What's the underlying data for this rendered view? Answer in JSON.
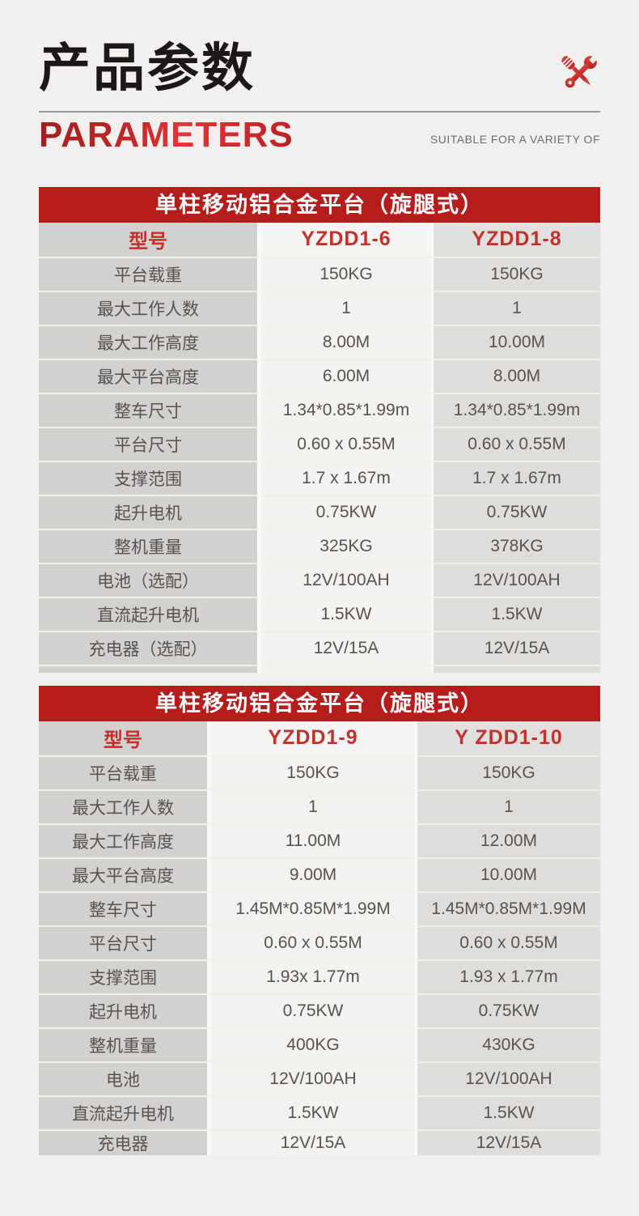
{
  "header": {
    "title_cn": "产品参数",
    "title_en": "PARAMETERS",
    "tagline": "SUITABLE FOR A VARIETY OF"
  },
  "icons": {
    "header_icon": "wrench-screwdriver-icon"
  },
  "colors": {
    "page_bg": "#f1f0ee",
    "banner_red": "#b51d1d",
    "accent_red": "#c4302c",
    "label_col_bg": "#d2d1d0",
    "value_col1_bg": "#f3f2f0",
    "value_col2_bg": "#dedddb",
    "cell_text": "#565351"
  },
  "tables": [
    {
      "banner": "单柱移动铝合金平台（旋腿式）",
      "model_label": "型号",
      "models": [
        "YZDD1-6",
        "YZDD1-8"
      ],
      "rows": [
        {
          "label": "平台载重",
          "v1": "150KG",
          "v2": "150KG"
        },
        {
          "label": "最大工作人数",
          "v1": "1",
          "v2": "1"
        },
        {
          "label": "最大工作高度",
          "v1": "8.00M",
          "v2": "10.00M"
        },
        {
          "label": "最大平台高度",
          "v1": "6.00M",
          "v2": "8.00M"
        },
        {
          "label": "整车尺寸",
          "v1": "1.34*0.85*1.99m",
          "v2": "1.34*0.85*1.99m"
        },
        {
          "label": "平台尺寸",
          "v1": "0.60 x 0.55M",
          "v2": "0.60 x 0.55M"
        },
        {
          "label": "支撑范围",
          "v1": "1.7 x 1.67m",
          "v2": "1.7 x 1.67m"
        },
        {
          "label": "起升电机",
          "v1": "0.75KW",
          "v2": "0.75KW"
        },
        {
          "label": "整机重量",
          "v1": "325KG",
          "v2": "378KG"
        },
        {
          "label": "电池（选配）",
          "v1": "12V/100AH",
          "v2": "12V/100AH"
        },
        {
          "label": "直流起升电机",
          "v1": "1.5KW",
          "v2": "1.5KW"
        },
        {
          "label": "充电器（选配）",
          "v1": "12V/15A",
          "v2": "12V/15A"
        }
      ]
    },
    {
      "banner": "单柱移动铝合金平台（旋腿式）",
      "model_label": "型号",
      "models": [
        "YZDD1-9",
        "Y ZDD1-10"
      ],
      "rows": [
        {
          "label": "平台载重",
          "v1": "150KG",
          "v2": "150KG"
        },
        {
          "label": "最大工作人数",
          "v1": "1",
          "v2": "1"
        },
        {
          "label": "最大工作高度",
          "v1": "11.00M",
          "v2": "12.00M"
        },
        {
          "label": "最大平台高度",
          "v1": "9.00M",
          "v2": "10.00M"
        },
        {
          "label": "整车尺寸",
          "v1": "1.45M*0.85M*1.99M",
          "v2": "1.45M*0.85M*1.99M"
        },
        {
          "label": "平台尺寸",
          "v1": "0.60 x 0.55M",
          "v2": "0.60 x 0.55M"
        },
        {
          "label": "支撑范围",
          "v1": "1.93x 1.77m",
          "v2": "1.93 x 1.77m"
        },
        {
          "label": "起升电机",
          "v1": "0.75KW",
          "v2": "0.75KW"
        },
        {
          "label": "整机重量",
          "v1": "400KG",
          "v2": "430KG"
        },
        {
          "label": "电池",
          "v1": "12V/100AH",
          "v2": "12V/100AH"
        },
        {
          "label": "直流起升电机",
          "v1": "1.5KW",
          "v2": "1.5KW"
        },
        {
          "label": "充电器",
          "v1": "12V/15A",
          "v2": "12V/15A"
        }
      ]
    }
  ]
}
